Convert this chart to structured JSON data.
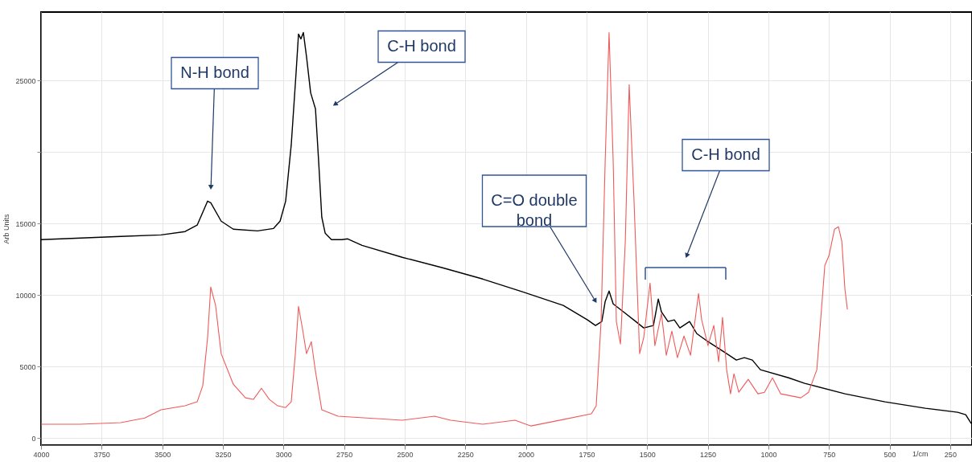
{
  "chart_data": {
    "type": "line",
    "xlabel": "1/cm",
    "ylabel": "Arb Units",
    "xlim": [
      4000,
      160
    ],
    "ylim": [
      -500,
      29800
    ],
    "xticks": [
      4000,
      3750,
      3500,
      3250,
      3000,
      2750,
      2500,
      2250,
      2000,
      1750,
      1500,
      1250,
      1000,
      750,
      500,
      250
    ],
    "yticks": [
      0,
      5000,
      10000,
      15000,
      {
        "value": 20000,
        "label": null
      },
      25000
    ],
    "grid": true,
    "series": [
      {
        "color": "#000000",
        "x": [
          4000,
          3671,
          3505,
          3406,
          3356,
          3313,
          3300,
          3257,
          3207,
          3107,
          3041,
          3014,
          2991,
          2968,
          2948,
          2938,
          2928,
          2918,
          2905,
          2888,
          2868,
          2855,
          2842,
          2828,
          2802,
          2759,
          2735,
          2676,
          2510,
          2344,
          2178,
          2012,
          1846,
          1746,
          1713,
          1687,
          1673,
          1657,
          1640,
          1597,
          1547,
          1514,
          1474,
          1454,
          1441,
          1414,
          1388,
          1365,
          1325,
          1295,
          1249,
          1182,
          1132,
          1099,
          1066,
          1033,
          916,
          850,
          684,
          519,
          352,
          219,
          186,
          163
        ],
        "values": [
          13880,
          14100,
          14210,
          14440,
          14890,
          16570,
          16460,
          15170,
          14610,
          14490,
          14660,
          15170,
          16570,
          20500,
          25560,
          28260,
          27920,
          28370,
          26690,
          24160,
          23030,
          19380,
          15450,
          14330,
          13880,
          13880,
          13930,
          13480,
          12640,
          11910,
          11120,
          10220,
          9270,
          8260,
          7870,
          8150,
          9550,
          10280,
          9380,
          8820,
          8150,
          7700,
          7870,
          9720,
          8820,
          8150,
          8260,
          7700,
          8150,
          7300,
          6740,
          6010,
          5450,
          5620,
          5450,
          4780,
          4210,
          3820,
          3090,
          2530,
          2080,
          1800,
          1630,
          1010
        ]
      },
      {
        "color": "#f05a5a",
        "x": [
          4000,
          3840,
          3671,
          3572,
          3505,
          3406,
          3356,
          3333,
          3313,
          3300,
          3280,
          3257,
          3207,
          3157,
          3124,
          3091,
          3058,
          3024,
          2991,
          2968,
          2951,
          2938,
          2921,
          2905,
          2885,
          2868,
          2842,
          2775,
          2510,
          2377,
          2311,
          2178,
          2045,
          1979,
          1846,
          1730,
          1710,
          1690,
          1673,
          1657,
          1640,
          1627,
          1610,
          1590,
          1574,
          1554,
          1531,
          1514,
          1488,
          1468,
          1441,
          1421,
          1398,
          1375,
          1348,
          1321,
          1288,
          1275,
          1249,
          1225,
          1205,
          1189,
          1172,
          1156,
          1142,
          1122,
          1083,
          1043,
          1016,
          983,
          949,
          866,
          834,
          800,
          767,
          750,
          727,
          711,
          697,
          684,
          674
        ],
        "values": [
          960,
          960,
          1070,
          1400,
          1970,
          2250,
          2530,
          3650,
          7020,
          10560,
          9270,
          5900,
          3760,
          2810,
          2700,
          3480,
          2700,
          2250,
          2130,
          2530,
          5900,
          9210,
          7580,
          5900,
          6740,
          4660,
          1970,
          1520,
          1240,
          1520,
          1240,
          960,
          1240,
          840,
          1290,
          1690,
          2250,
          8150,
          19380,
          28370,
          19380,
          8150,
          6570,
          13760,
          24720,
          16570,
          5900,
          7020,
          10840,
          6460,
          8710,
          5790,
          7470,
          5620,
          7130,
          5790,
          10110,
          8260,
          6460,
          7870,
          5340,
          8430,
          4780,
          3090,
          4490,
          3200,
          4100,
          3090,
          3200,
          4210,
          3090,
          2810,
          3200,
          4780,
          12080,
          12750,
          14610,
          14780,
          13760,
          10390,
          8990
        ]
      }
    ],
    "annotations": [
      "N-H bond",
      "C-H bond",
      "C=O double bond",
      "C-H bond"
    ]
  }
}
